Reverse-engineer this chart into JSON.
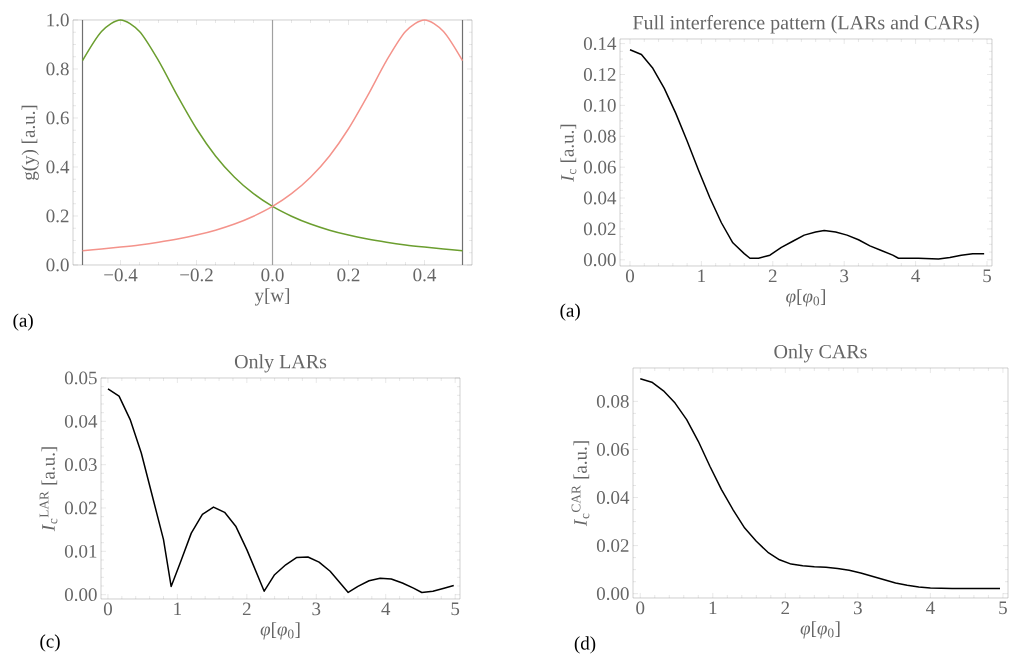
{
  "chart_data": [
    {
      "type": "line",
      "xlabel": "y[w]",
      "ylabel": "g(y) [a.u.]",
      "annotations": [
        "(a)"
      ],
      "xlim": [
        -0.525,
        0.525
      ],
      "ylim": [
        0,
        1
      ],
      "xticks": [
        {
          "value": -0.4,
          "label": "−0.4"
        },
        {
          "value": -0.2,
          "label": "−0.2"
        },
        {
          "value": 0,
          "label": "0.0"
        },
        0.2,
        0.4
      ],
      "yticks": [
        {
          "value": 0,
          "label": "0.0"
        },
        0.2,
        0.4,
        0.6,
        0.8,
        {
          "value": 1,
          "label": "1.0"
        }
      ],
      "x": [
        -0.5,
        -0.45,
        -0.4,
        -0.35,
        -0.3,
        -0.25,
        -0.2,
        -0.15,
        -0.1,
        -0.05,
        0,
        0.05,
        0.1,
        0.15,
        0.2,
        0.25,
        0.3,
        0.35,
        0.4,
        0.45,
        0.5
      ],
      "ref_lines": [
        {
          "axis": "x",
          "value": -0.5,
          "color": "#707070"
        },
        {
          "axis": "x",
          "value": 0,
          "color": "#a0a0a0"
        },
        {
          "axis": "x",
          "value": 0.5,
          "color": "#707070"
        }
      ],
      "series": [
        {
          "color": "#6b9e2f",
          "values": [
            0.834,
            0.953,
            1,
            0.953,
            0.834,
            0.69,
            0.556,
            0.445,
            0.358,
            0.291,
            0.239,
            0.199,
            0.167,
            0.142,
            0.122,
            0.106,
            0.093,
            0.082,
            0.073,
            0.065,
            0.058
          ]
        },
        {
          "color": "#f4938b",
          "values": [
            0.058,
            0.065,
            0.073,
            0.082,
            0.093,
            0.106,
            0.122,
            0.142,
            0.167,
            0.199,
            0.239,
            0.291,
            0.358,
            0.445,
            0.556,
            0.69,
            0.834,
            0.953,
            1,
            0.953,
            0.834
          ]
        }
      ]
    },
    {
      "type": "line",
      "title": "Full interference pattern (LARs and CARs)",
      "xlabel": "*φ*[*φ*$_{0}$]",
      "ylabel": "*I*$_{c}$ [a.u.]",
      "annotations": [
        "(a)"
      ],
      "xlim": [
        -0.14,
        5.07
      ],
      "ylim": [
        -0.004,
        0.143
      ],
      "xticks": [
        0,
        1,
        2,
        3,
        4,
        5
      ],
      "yticks": [
        {
          "value": 0,
          "label": "0.00"
        },
        0.02,
        0.04,
        0.06,
        0.08,
        {
          "value": 0.1,
          "label": "0.10"
        },
        0.12,
        0.14
      ],
      "x": [
        0,
        0.16,
        0.32,
        0.48,
        0.64,
        0.8,
        0.96,
        1.12,
        1.28,
        1.44,
        1.6,
        1.68,
        1.8,
        1.96,
        2.12,
        2.28,
        2.44,
        2.6,
        2.72,
        2.88,
        3.04,
        3.2,
        3.36,
        3.52,
        3.68,
        3.76,
        4.04,
        4.32,
        4.48,
        4.64,
        4.8,
        4.96
      ],
      "series": [
        {
          "color": "#000000",
          "values": [
            0.136,
            0.133,
            0.124,
            0.111,
            0.095,
            0.077,
            0.058,
            0.04,
            0.024,
            0.011,
            0.004,
            0.001,
            0.001,
            0.003,
            0.008,
            0.012,
            0.016,
            0.018,
            0.019,
            0.018,
            0.016,
            0.013,
            0.009,
            0.006,
            0.003,
            0.001,
            0.001,
            0.0005,
            0.0015,
            0.003,
            0.004,
            0.004
          ]
        }
      ]
    },
    {
      "type": "line",
      "title": "Only LARs",
      "xlabel": "*φ*[*φ*$_{0}$]",
      "ylabel": "*I*$_{c}$$^{LAR}$ [a.u.]",
      "annotations": [
        "(c)"
      ],
      "xlim": [
        -0.1,
        5.07
      ],
      "ylim": [
        -0.001,
        0.05
      ],
      "xticks": [
        0,
        1,
        2,
        3,
        4,
        5
      ],
      "yticks": [
        {
          "value": 0,
          "label": "0.00"
        },
        0.01,
        0.02,
        0.03,
        0.04,
        0.05
      ],
      "x": [
        0,
        0.16,
        0.32,
        0.48,
        0.64,
        0.8,
        0.91,
        1.04,
        1.2,
        1.36,
        1.52,
        1.68,
        1.84,
        2.0,
        2.25,
        2.4,
        2.56,
        2.72,
        2.88,
        3.04,
        3.2,
        3.46,
        3.6,
        3.76,
        3.92,
        4.08,
        4.24,
        4.4,
        4.52,
        4.68,
        4.84,
        4.98
      ],
      "series": [
        {
          "color": "#000000",
          "values": [
            0.0475,
            0.0458,
            0.0404,
            0.0327,
            0.0227,
            0.0127,
            0.0019,
            0.0073,
            0.0142,
            0.0185,
            0.0202,
            0.019,
            0.0158,
            0.0104,
            0.0008,
            0.0046,
            0.0069,
            0.0086,
            0.0087,
            0.0075,
            0.0054,
            0.0005,
            0.0019,
            0.0032,
            0.0038,
            0.0036,
            0.0027,
            0.0015,
            0.0005,
            0.0008,
            0.0015,
            0.0021
          ]
        }
      ]
    },
    {
      "type": "line",
      "title": "Only CARs",
      "xlabel": "*φ*[*φ*$_{0}$]",
      "ylabel": "*I*$_{c}$$^{CAR}$ [a.u.]",
      "annotations": [
        "(d)"
      ],
      "xlim": [
        -0.1,
        5.07
      ],
      "ylim": [
        -0.0018,
        0.0939
      ],
      "xticks": [
        0,
        1,
        2,
        3,
        4,
        5
      ],
      "yticks": [
        {
          "value": 0,
          "label": "0.00"
        },
        0.02,
        0.04,
        0.06,
        0.08
      ],
      "x": [
        0,
        0.16,
        0.32,
        0.48,
        0.64,
        0.8,
        0.96,
        1.12,
        1.28,
        1.44,
        1.6,
        1.76,
        1.92,
        2.08,
        2.24,
        2.4,
        2.56,
        2.72,
        2.88,
        3.04,
        3.2,
        3.36,
        3.52,
        3.68,
        3.84,
        4.0,
        4.3,
        4.6,
        4.96
      ],
      "series": [
        {
          "color": "#000000",
          "values": [
            0.0894,
            0.088,
            0.0844,
            0.0793,
            0.0724,
            0.0634,
            0.053,
            0.0433,
            0.0349,
            0.0273,
            0.0218,
            0.0172,
            0.0141,
            0.0123,
            0.0116,
            0.0112,
            0.011,
            0.0105,
            0.0097,
            0.0086,
            0.0072,
            0.0058,
            0.0044,
            0.0035,
            0.0028,
            0.0024,
            0.0021,
            0.0021,
            0.0021
          ]
        }
      ]
    }
  ]
}
